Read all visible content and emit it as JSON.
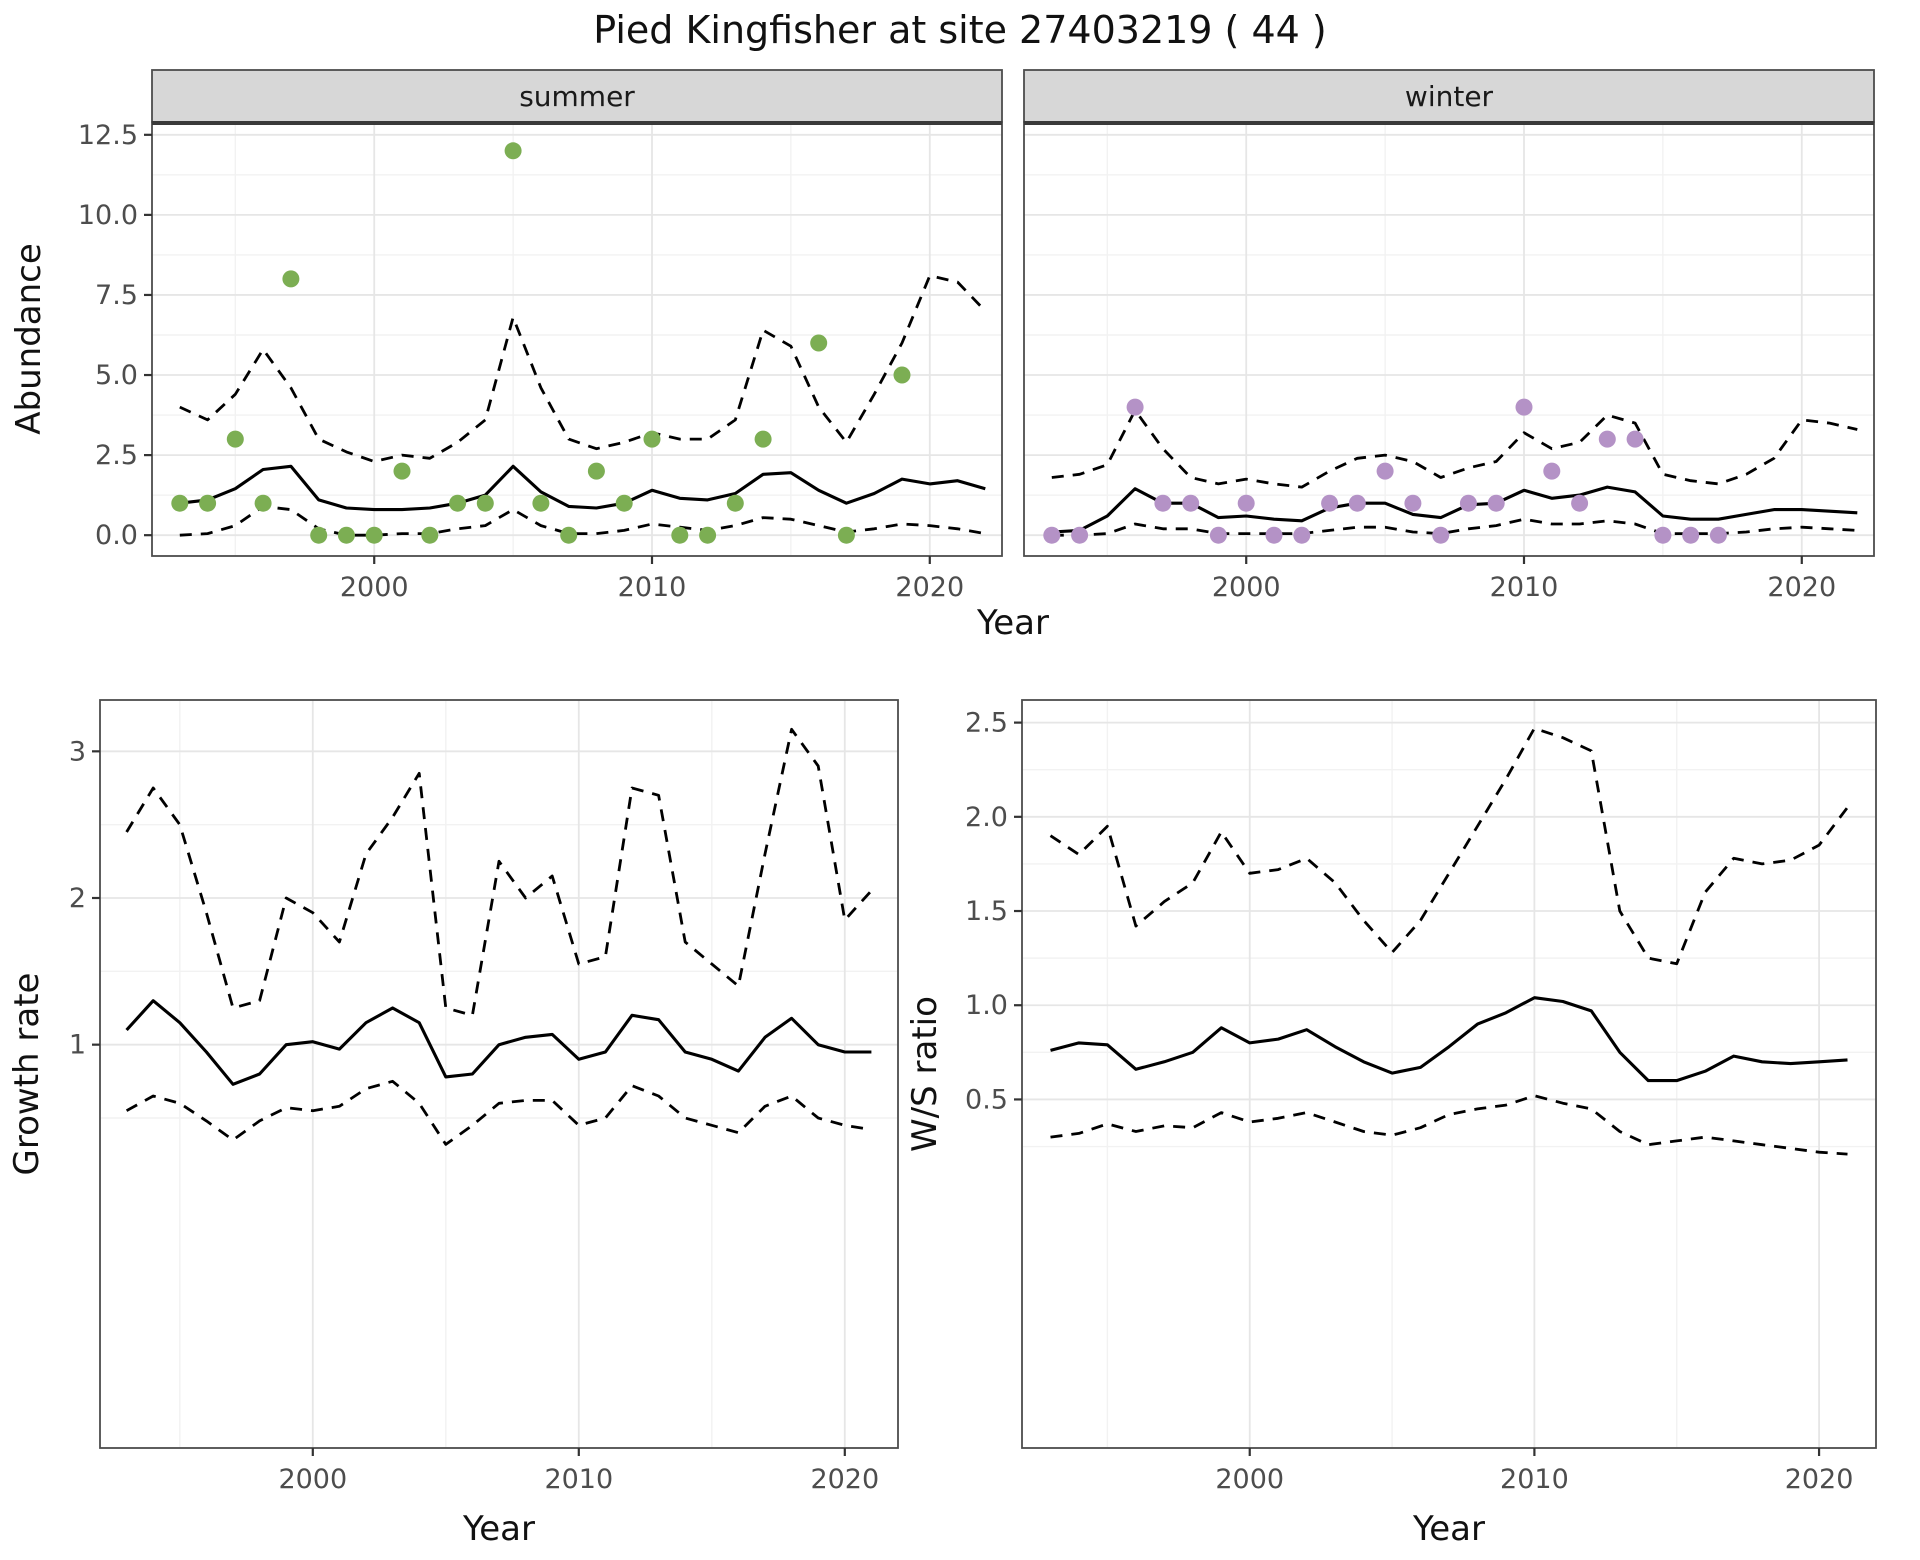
{
  "title": "Pied Kingfisher at site 27403219 ( 44 )",
  "colors": {
    "summer_point": "#7cae53",
    "winter_point": "#b492c6",
    "strip_bg": "#d7d7d7",
    "strip_text": "#1a1a1a",
    "grid_major": "#e6e6e6",
    "grid_minor": "#f2f2f2",
    "panel_border": "#4d4d4d",
    "strip_underline": "#3a3a3a",
    "line": "#000000",
    "tick_mark": "#333333",
    "tick_text": "#4d4d4d"
  },
  "chart_data": [
    {
      "id": "abundance",
      "type": "line",
      "xlabel": "Year",
      "ylabel": "Abundance",
      "xlim": [
        1992,
        2022.6
      ],
      "ylim": [
        -0.65,
        12.9
      ],
      "xticks": {
        "values": [
          2000,
          2010,
          2020
        ],
        "labels": [
          "2000",
          "2010",
          "2020"
        ]
      },
      "yticks": {
        "values": [
          0,
          2.5,
          5,
          7.5,
          10,
          12.5
        ],
        "labels": [
          "0.0",
          "2.5",
          "5.0",
          "7.5",
          "10.0",
          "12.5"
        ]
      },
      "xminor": [
        1995,
        2005,
        2015
      ],
      "yminor": [
        1.25,
        3.75,
        6.25,
        8.75,
        11.25
      ],
      "years": [
        1993,
        1994,
        1995,
        1996,
        1997,
        1998,
        1999,
        2000,
        2001,
        2002,
        2003,
        2004,
        2005,
        2006,
        2007,
        2008,
        2009,
        2010,
        2011,
        2012,
        2013,
        2014,
        2015,
        2016,
        2017,
        2018,
        2019,
        2020,
        2021,
        2022
      ],
      "facets": [
        {
          "label": "summer",
          "point_color": "summer_point",
          "mean": [
            1.0,
            1.1,
            1.45,
            2.05,
            2.15,
            1.1,
            0.85,
            0.8,
            0.8,
            0.85,
            1.0,
            1.25,
            2.15,
            1.35,
            0.9,
            0.85,
            1.0,
            1.4,
            1.15,
            1.1,
            1.3,
            1.9,
            1.95,
            1.4,
            1.0,
            1.3,
            1.75,
            1.6,
            1.7,
            1.45
          ],
          "upper": [
            4.0,
            3.6,
            4.4,
            5.8,
            4.6,
            3.0,
            2.6,
            2.3,
            2.5,
            2.4,
            2.9,
            3.6,
            6.8,
            4.6,
            3.0,
            2.7,
            2.9,
            3.2,
            3.0,
            3.0,
            3.6,
            6.4,
            5.9,
            4.0,
            2.9,
            4.4,
            6.0,
            8.1,
            7.9,
            7.0
          ],
          "lower": [
            0.0,
            0.05,
            0.3,
            0.9,
            0.8,
            0.2,
            0.0,
            0.0,
            0.05,
            0.05,
            0.2,
            0.3,
            0.8,
            0.3,
            0.05,
            0.05,
            0.15,
            0.35,
            0.25,
            0.15,
            0.3,
            0.55,
            0.5,
            0.3,
            0.1,
            0.2,
            0.35,
            0.3,
            0.2,
            0.05
          ],
          "observations": [
            [
              1993,
              1
            ],
            [
              1994,
              1
            ],
            [
              1995,
              3
            ],
            [
              1996,
              1
            ],
            [
              1997,
              8
            ],
            [
              1998,
              0
            ],
            [
              1999,
              0
            ],
            [
              2000,
              0
            ],
            [
              2001,
              2
            ],
            [
              2002,
              0
            ],
            [
              2003,
              1
            ],
            [
              2004,
              1
            ],
            [
              2005,
              12
            ],
            [
              2006,
              1
            ],
            [
              2007,
              0
            ],
            [
              2008,
              2
            ],
            [
              2009,
              1
            ],
            [
              2010,
              3
            ],
            [
              2011,
              0
            ],
            [
              2012,
              0
            ],
            [
              2013,
              1
            ],
            [
              2014,
              3
            ],
            [
              2016,
              6
            ],
            [
              2017,
              0
            ],
            [
              2019,
              5
            ]
          ]
        },
        {
          "label": "winter",
          "point_color": "winter_point",
          "mean": [
            0.1,
            0.15,
            0.6,
            1.45,
            1.0,
            1.0,
            0.55,
            0.6,
            0.5,
            0.45,
            0.85,
            1.0,
            1.0,
            0.65,
            0.55,
            0.95,
            1.0,
            1.4,
            1.15,
            1.25,
            1.5,
            1.35,
            0.6,
            0.5,
            0.5,
            0.65,
            0.8,
            0.8,
            0.75,
            0.7
          ],
          "upper": [
            1.8,
            1.9,
            2.2,
            3.9,
            2.7,
            1.8,
            1.6,
            1.75,
            1.6,
            1.5,
            2.0,
            2.4,
            2.5,
            2.3,
            1.8,
            2.1,
            2.3,
            3.2,
            2.7,
            2.9,
            3.75,
            3.5,
            1.9,
            1.7,
            1.6,
            1.9,
            2.4,
            3.6,
            3.5,
            3.3
          ],
          "lower": [
            0.0,
            0.0,
            0.05,
            0.35,
            0.2,
            0.2,
            0.05,
            0.05,
            0.05,
            0.05,
            0.15,
            0.25,
            0.25,
            0.1,
            0.05,
            0.2,
            0.3,
            0.5,
            0.35,
            0.35,
            0.45,
            0.35,
            0.05,
            0.05,
            0.05,
            0.1,
            0.2,
            0.25,
            0.2,
            0.15
          ],
          "observations": [
            [
              1993,
              0
            ],
            [
              1994,
              0
            ],
            [
              1996,
              4
            ],
            [
              1997,
              1
            ],
            [
              1998,
              1
            ],
            [
              1999,
              0
            ],
            [
              2000,
              1
            ],
            [
              2001,
              0
            ],
            [
              2002,
              0
            ],
            [
              2003,
              1
            ],
            [
              2004,
              1
            ],
            [
              2005,
              2
            ],
            [
              2006,
              1
            ],
            [
              2007,
              0
            ],
            [
              2008,
              1
            ],
            [
              2009,
              1
            ],
            [
              2010,
              4
            ],
            [
              2011,
              2
            ],
            [
              2012,
              1
            ],
            [
              2013,
              3
            ],
            [
              2014,
              3
            ],
            [
              2015,
              0
            ],
            [
              2016,
              0
            ],
            [
              2017,
              0
            ]
          ]
        }
      ]
    },
    {
      "id": "growth_rate",
      "type": "line",
      "xlabel": "Year",
      "ylabel": "Growth rate",
      "xlim": [
        1992,
        2022
      ],
      "ylim": [
        -1.75,
        3.35
      ],
      "xticks": {
        "values": [
          2000,
          2010,
          2020
        ],
        "labels": [
          "2000",
          "2010",
          "2020"
        ]
      },
      "yticks": {
        "values": [
          1,
          2,
          3
        ],
        "labels": [
          "1",
          "2",
          "3"
        ]
      },
      "xminor": [
        1995,
        2005,
        2015
      ],
      "yminor": [
        0.5,
        1.5,
        2.5
      ],
      "years": [
        1993,
        1994,
        1995,
        1996,
        1997,
        1998,
        1999,
        2000,
        2001,
        2002,
        2003,
        2004,
        2005,
        2006,
        2007,
        2008,
        2009,
        2010,
        2011,
        2012,
        2013,
        2014,
        2015,
        2016,
        2017,
        2018,
        2019,
        2020,
        2021
      ],
      "mean": [
        1.1,
        1.3,
        1.15,
        0.95,
        0.73,
        0.8,
        1.0,
        1.02,
        0.97,
        1.15,
        1.25,
        1.15,
        0.78,
        0.8,
        1.0,
        1.05,
        1.07,
        0.9,
        0.95,
        1.2,
        1.17,
        0.95,
        0.9,
        0.82,
        1.05,
        1.18,
        1.0,
        0.95,
        0.95
      ],
      "upper": [
        2.45,
        2.75,
        2.5,
        1.9,
        1.25,
        1.3,
        2.0,
        1.9,
        1.7,
        2.3,
        2.55,
        2.85,
        1.25,
        1.2,
        2.25,
        2.0,
        2.15,
        1.55,
        1.6,
        2.75,
        2.7,
        1.7,
        1.55,
        1.4,
        2.3,
        3.15,
        2.9,
        1.85,
        2.05
      ],
      "lower": [
        0.55,
        0.65,
        0.6,
        0.48,
        0.35,
        0.48,
        0.57,
        0.55,
        0.58,
        0.7,
        0.75,
        0.6,
        0.32,
        0.45,
        0.6,
        0.62,
        0.62,
        0.45,
        0.5,
        0.72,
        0.65,
        0.5,
        0.45,
        0.4,
        0.58,
        0.65,
        0.5,
        0.45,
        0.42
      ]
    },
    {
      "id": "ws_ratio",
      "type": "line",
      "xlabel": "Year",
      "ylabel": "W/S ratio",
      "xlim": [
        1992,
        2022
      ],
      "ylim": [
        -1.35,
        2.62
      ],
      "xticks": {
        "values": [
          2000,
          2010,
          2020
        ],
        "labels": [
          "2000",
          "2010",
          "2020"
        ]
      },
      "yticks": {
        "values": [
          0.5,
          1.0,
          1.5,
          2.0,
          2.5
        ],
        "labels": [
          "0.5",
          "1.0",
          "1.5",
          "2.0",
          "2.5"
        ]
      },
      "xminor": [
        1995,
        2005,
        2015
      ],
      "yminor": [
        0.25,
        0.75,
        1.25,
        1.75,
        2.25
      ],
      "years": [
        1993,
        1994,
        1995,
        1996,
        1997,
        1998,
        1999,
        2000,
        2001,
        2002,
        2003,
        2004,
        2005,
        2006,
        2007,
        2008,
        2009,
        2010,
        2011,
        2012,
        2013,
        2014,
        2015,
        2016,
        2017,
        2018,
        2019,
        2020,
        2021
      ],
      "mean": [
        0.76,
        0.8,
        0.79,
        0.66,
        0.7,
        0.75,
        0.88,
        0.8,
        0.82,
        0.87,
        0.78,
        0.7,
        0.64,
        0.67,
        0.78,
        0.9,
        0.96,
        1.04,
        1.02,
        0.97,
        0.75,
        0.6,
        0.6,
        0.65,
        0.73,
        0.7,
        0.69,
        0.7,
        0.71
      ],
      "upper": [
        1.9,
        1.8,
        1.95,
        1.42,
        1.55,
        1.65,
        1.92,
        1.7,
        1.72,
        1.78,
        1.65,
        1.45,
        1.28,
        1.45,
        1.7,
        1.95,
        2.2,
        2.47,
        2.42,
        2.35,
        1.5,
        1.25,
        1.22,
        1.6,
        1.78,
        1.75,
        1.77,
        1.85,
        2.05
      ],
      "lower": [
        0.3,
        0.32,
        0.37,
        0.33,
        0.36,
        0.35,
        0.43,
        0.38,
        0.4,
        0.43,
        0.38,
        0.33,
        0.31,
        0.35,
        0.42,
        0.45,
        0.47,
        0.52,
        0.48,
        0.45,
        0.33,
        0.26,
        0.28,
        0.3,
        0.28,
        0.26,
        0.24,
        0.22,
        0.21
      ]
    }
  ]
}
